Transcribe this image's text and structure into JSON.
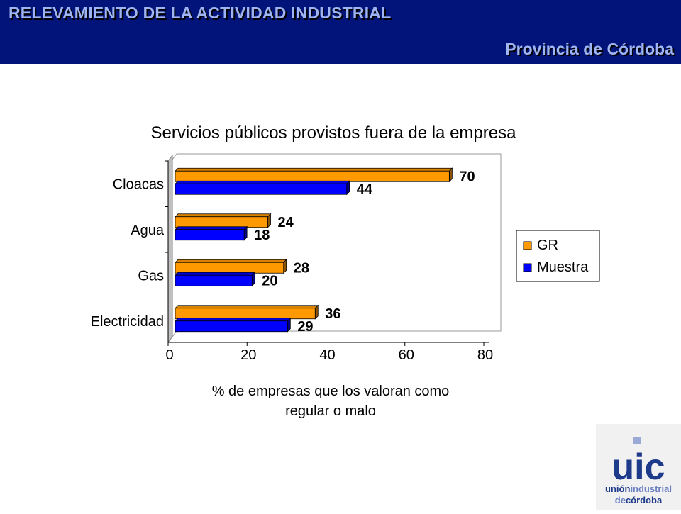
{
  "header": {
    "title": "RELEVAMIENTO DE LA ACTIVIDAD INDUSTRIAL",
    "subtitle": "Provincia de Córdoba",
    "bg_color": "#02147a",
    "text_color": "#9fb4f2"
  },
  "chart_data": {
    "type": "bar",
    "orientation": "horizontal",
    "title": "Servicios públicos provistos fuera de la empresa",
    "xlabel_lines": [
      "% de empresas que los valoran como",
      "regular o malo"
    ],
    "ylabel": "",
    "categories": [
      "Cloacas",
      "Agua",
      "Gas",
      "Electricidad"
    ],
    "series": [
      {
        "name": "GR",
        "values": [
          70,
          24,
          28,
          36
        ],
        "color": "#ff9900"
      },
      {
        "name": "Muestra",
        "values": [
          44,
          18,
          20,
          29
        ],
        "color": "#0000ff"
      }
    ],
    "xlim": [
      0,
      80
    ],
    "xticks": [
      0,
      20,
      40,
      60,
      80
    ],
    "grid": false,
    "legend_position": "right",
    "style": "3d"
  },
  "logo": {
    "text_top": "uic",
    "line1_a": "unión",
    "line1_b": "industrial",
    "line2_a": "de",
    "line2_b": "córdoba"
  }
}
